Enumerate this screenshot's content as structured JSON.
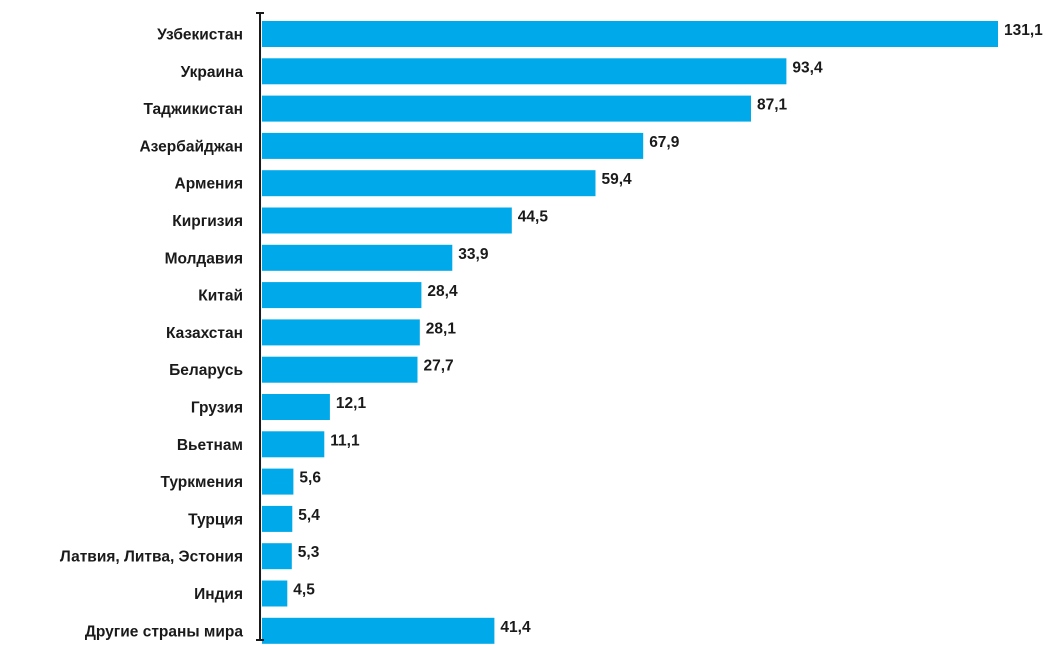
{
  "chart_data": {
    "type": "bar",
    "orientation": "horizontal",
    "categories": [
      "Узбекистан",
      "Украина",
      "Таджикистан",
      "Азербайджан",
      "Армения",
      "Киргизия",
      "Молдавия",
      "Китай",
      "Казахстан",
      "Беларусь",
      "Грузия",
      "Вьетнам",
      "Туркмения",
      "Турция",
      "Латвия, Литва, Эстония",
      "Индия",
      "Другие страны мира"
    ],
    "values": [
      131.1,
      93.4,
      87.1,
      67.9,
      59.4,
      44.5,
      33.9,
      28.4,
      28.1,
      27.7,
      12.1,
      11.1,
      5.6,
      5.4,
      5.3,
      4.5,
      41.4
    ],
    "value_labels": [
      "131,1",
      "93,4",
      "87,1",
      "67,9",
      "59,4",
      "44,5",
      "33,9",
      "28,4",
      "28,1",
      "27,7",
      "12,1",
      "11,1",
      "5,6",
      "5,4",
      "5,3",
      "4,5",
      "41,4"
    ],
    "title": "",
    "xlabel": "",
    "ylabel": "",
    "xlim": [
      0,
      131.1
    ],
    "grid": false,
    "legend": "none",
    "bar_color": "#00a9e9",
    "axis_color": "#1a1a1a"
  }
}
